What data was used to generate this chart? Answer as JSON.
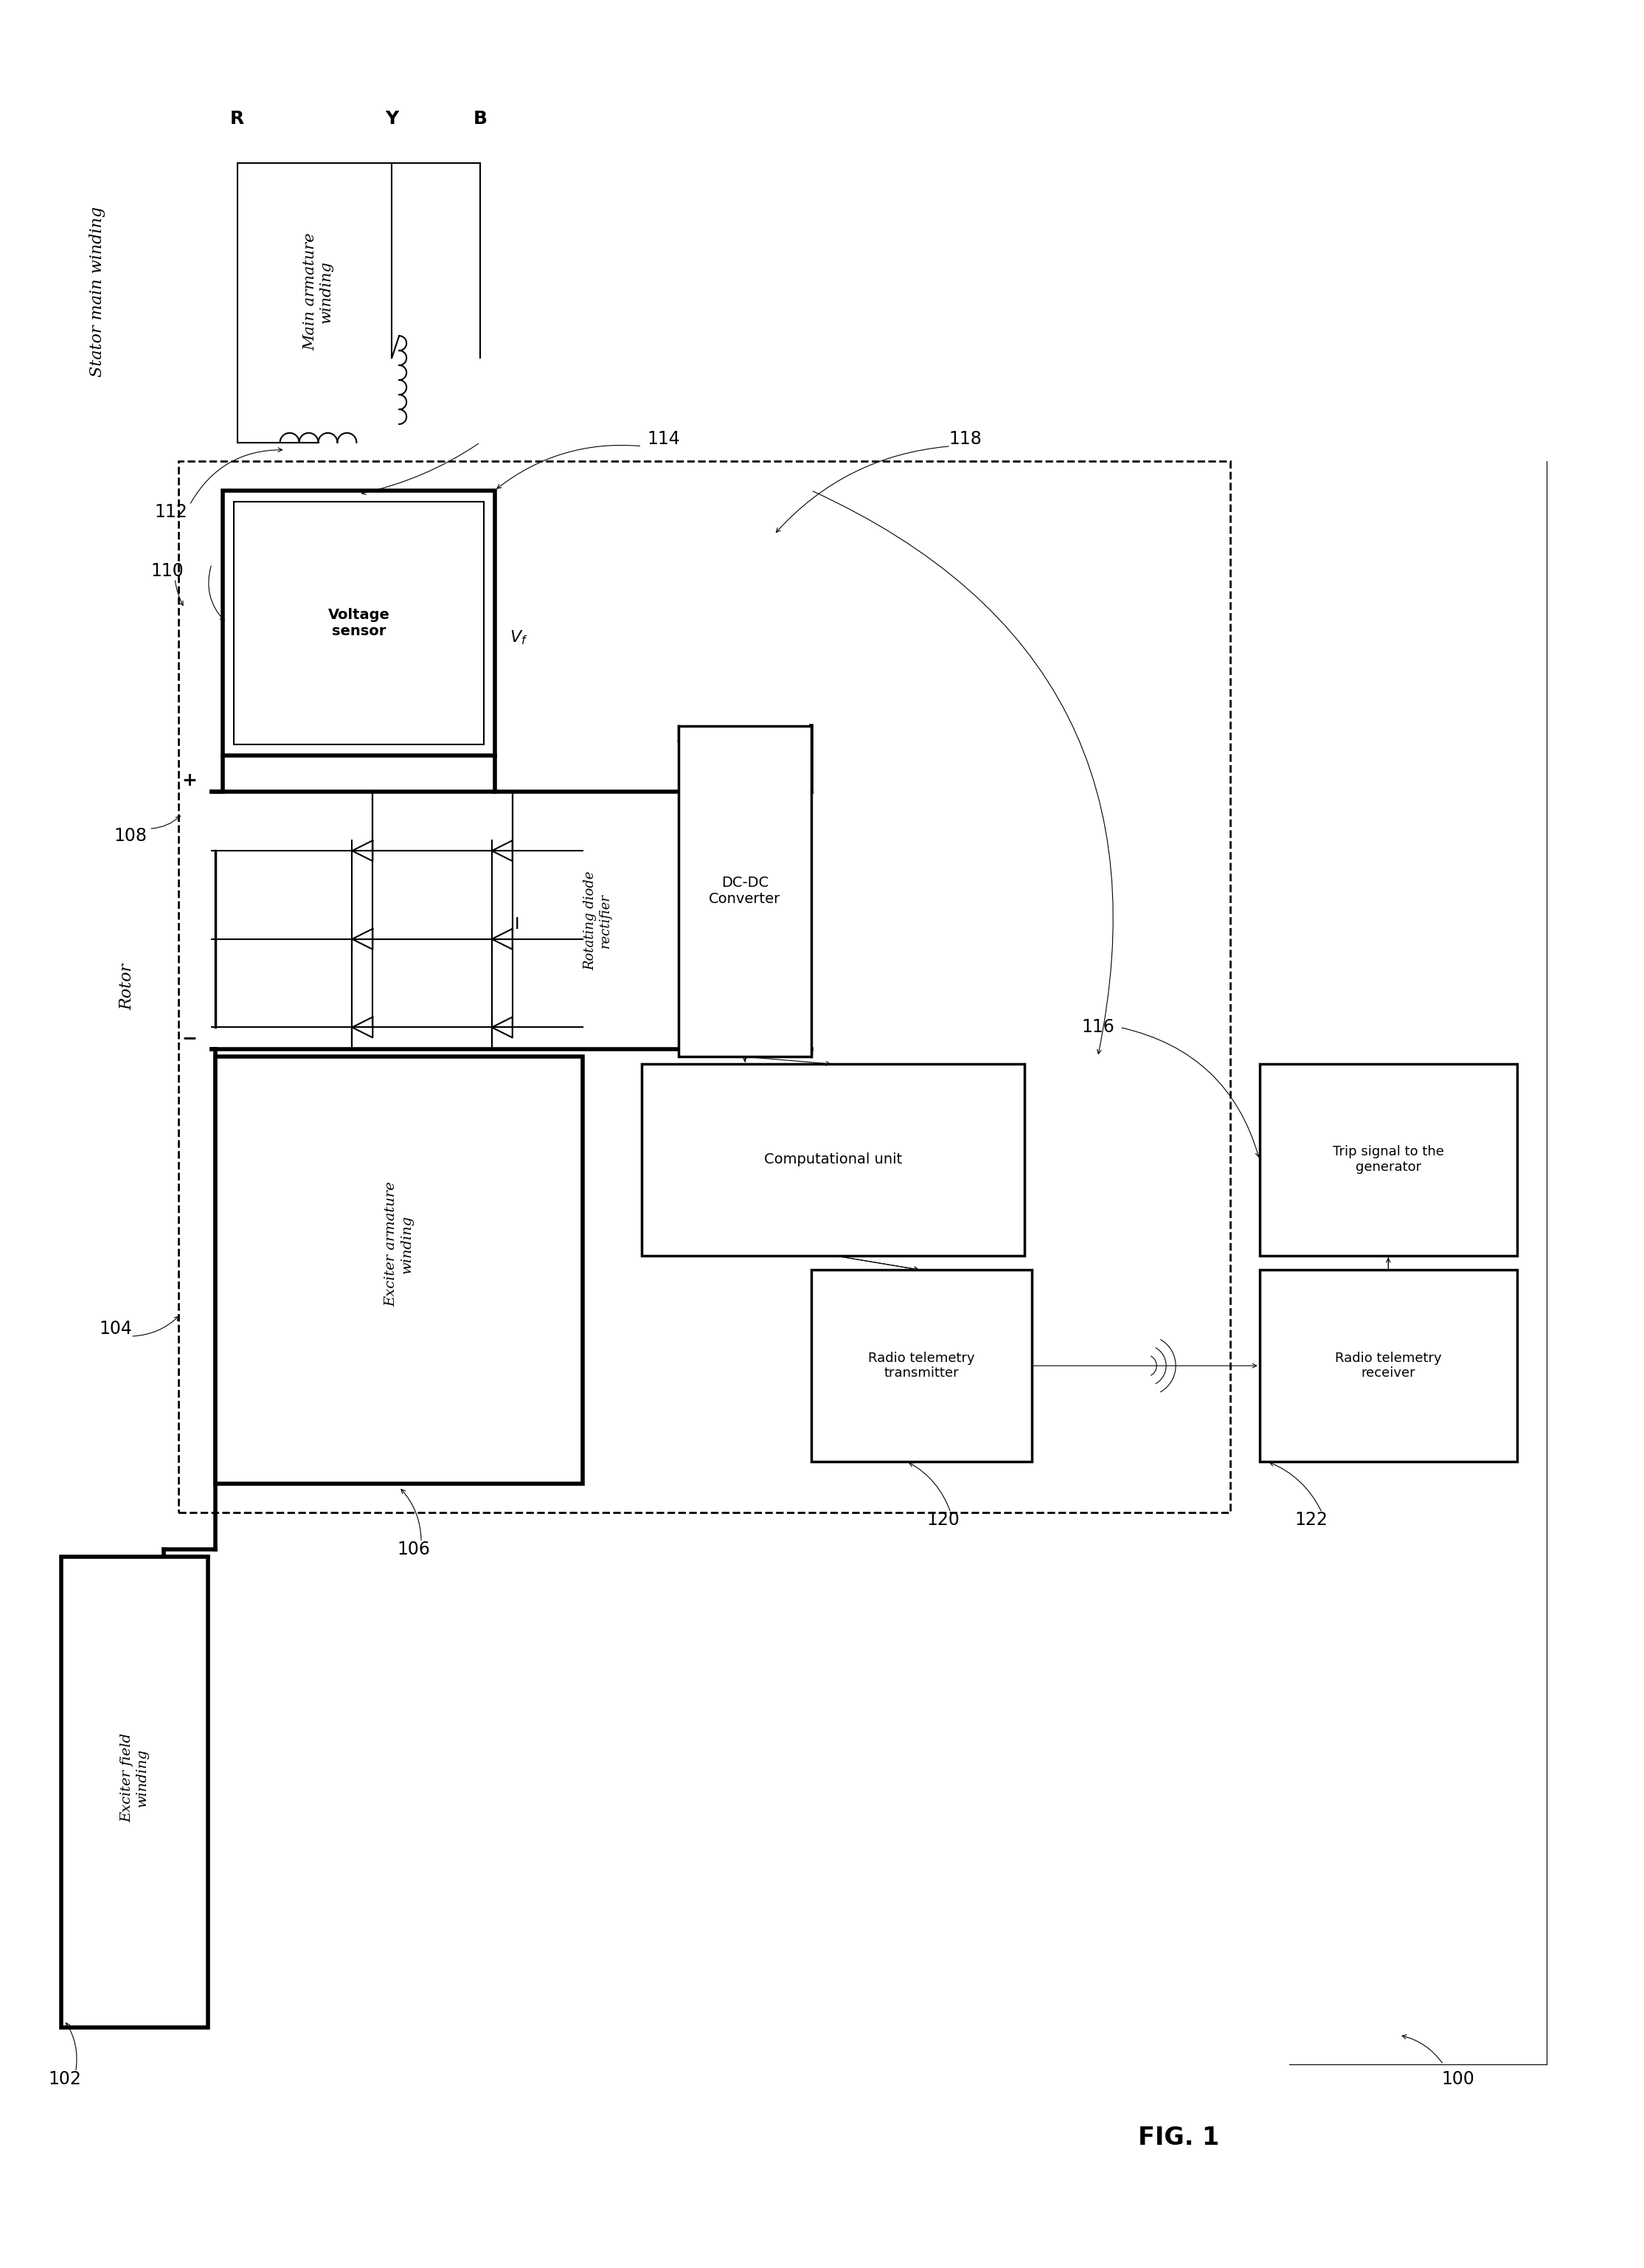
{
  "title": "FIG. 1",
  "background_color": "#ffffff",
  "fig_width": 22.29,
  "fig_height": 30.74,
  "labels": {
    "stator_main_winding": "Stator main winding",
    "main_armature_winding": "Main armature\nwinding",
    "R": "R",
    "Y": "Y",
    "B": "B",
    "exciter_field_winding": "Exciter field\nwinding",
    "exciter_armature_winding": "Exciter armature\nwinding",
    "rotor": "Rotor",
    "voltage_sensor": "Voltage\nsensor",
    "Vf": "$V_f$",
    "rotating_diode_rectifier": "Rotating diode\nrectifier",
    "dc_dc_converter": "DC-DC\nConverter",
    "computational_unit": "Computational unit",
    "radio_telemetry_transmitter": "Radio telemetry\ntransmitter",
    "radio_telemetry_receiver": "Radio telemetry\nreceiver",
    "trip_signal": "Trip signal to the\ngenerator",
    "fig_label": "FIG. 1",
    "n100": "100",
    "n102": "102",
    "n104": "104",
    "n106": "106",
    "n108": "108",
    "n110": "110",
    "n112": "112",
    "n114": "114",
    "n116": "116",
    "n118": "118",
    "n120": "120",
    "n122": "122",
    "plus": "+",
    "minus": "−"
  }
}
